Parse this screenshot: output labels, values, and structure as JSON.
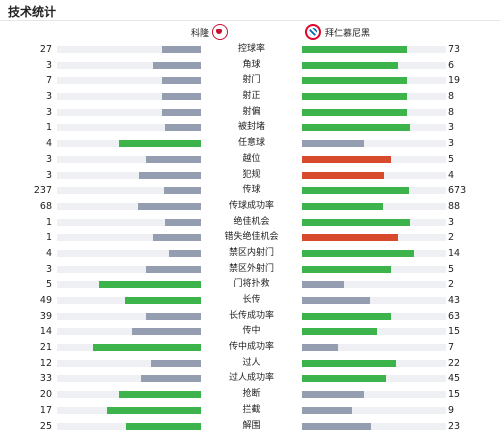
{
  "header": {
    "title": "技术统计"
  },
  "teams": {
    "home": "科隆",
    "away": "拜仁慕尼黑"
  },
  "colors": {
    "win": "#3cb44b",
    "neutral": "#959db0",
    "red": "#d84a2c",
    "track": "#eef0f3"
  },
  "stats": [
    {
      "label": "控球率",
      "home": "27",
      "away": "73",
      "hf": 0.27,
      "af": 0.73,
      "hc": "neutral",
      "ac": "win"
    },
    {
      "label": "角球",
      "home": "3",
      "away": "6",
      "hf": 0.33,
      "af": 0.67,
      "hc": "neutral",
      "ac": "win"
    },
    {
      "label": "射门",
      "home": "7",
      "away": "19",
      "hf": 0.27,
      "af": 0.73,
      "hc": "neutral",
      "ac": "win"
    },
    {
      "label": "射正",
      "home": "3",
      "away": "8",
      "hf": 0.27,
      "af": 0.73,
      "hc": "neutral",
      "ac": "win"
    },
    {
      "label": "射偏",
      "home": "3",
      "away": "8",
      "hf": 0.27,
      "af": 0.73,
      "hc": "neutral",
      "ac": "win"
    },
    {
      "label": "被封堵",
      "home": "1",
      "away": "3",
      "hf": 0.25,
      "af": 0.75,
      "hc": "neutral",
      "ac": "win"
    },
    {
      "label": "任意球",
      "home": "4",
      "away": "3",
      "hf": 0.57,
      "af": 0.43,
      "hc": "win",
      "ac": "neutral"
    },
    {
      "label": "越位",
      "home": "3",
      "away": "5",
      "hf": 0.38,
      "af": 0.62,
      "hc": "neutral",
      "ac": "red"
    },
    {
      "label": "犯规",
      "home": "3",
      "away": "4",
      "hf": 0.43,
      "af": 0.57,
      "hc": "neutral",
      "ac": "red"
    },
    {
      "label": "传球",
      "home": "237",
      "away": "673",
      "hf": 0.26,
      "af": 0.74,
      "hc": "neutral",
      "ac": "win"
    },
    {
      "label": "传球成功率",
      "home": "68",
      "away": "88",
      "hf": 0.44,
      "af": 0.56,
      "hc": "neutral",
      "ac": "win"
    },
    {
      "label": "绝佳机会",
      "home": "1",
      "away": "3",
      "hf": 0.25,
      "af": 0.75,
      "hc": "neutral",
      "ac": "win"
    },
    {
      "label": "错失绝佳机会",
      "home": "1",
      "away": "2",
      "hf": 0.33,
      "af": 0.67,
      "hc": "neutral",
      "ac": "red"
    },
    {
      "label": "禁区内射门",
      "home": "4",
      "away": "14",
      "hf": 0.22,
      "af": 0.78,
      "hc": "neutral",
      "ac": "win"
    },
    {
      "label": "禁区外射门",
      "home": "3",
      "away": "5",
      "hf": 0.38,
      "af": 0.62,
      "hc": "neutral",
      "ac": "win"
    },
    {
      "label": "门将扑救",
      "home": "5",
      "away": "2",
      "hf": 0.71,
      "af": 0.29,
      "hc": "win",
      "ac": "neutral"
    },
    {
      "label": "长传",
      "home": "49",
      "away": "43",
      "hf": 0.53,
      "af": 0.47,
      "hc": "win",
      "ac": "neutral"
    },
    {
      "label": "长传成功率",
      "home": "39",
      "away": "63",
      "hf": 0.38,
      "af": 0.62,
      "hc": "neutral",
      "ac": "win"
    },
    {
      "label": "传中",
      "home": "14",
      "away": "15",
      "hf": 0.48,
      "af": 0.52,
      "hc": "neutral",
      "ac": "win"
    },
    {
      "label": "传中成功率",
      "home": "21",
      "away": "7",
      "hf": 0.75,
      "af": 0.25,
      "hc": "win",
      "ac": "neutral"
    },
    {
      "label": "过人",
      "home": "12",
      "away": "22",
      "hf": 0.35,
      "af": 0.65,
      "hc": "neutral",
      "ac": "win"
    },
    {
      "label": "过人成功率",
      "home": "33",
      "away": "45",
      "hf": 0.42,
      "af": 0.58,
      "hc": "neutral",
      "ac": "win"
    },
    {
      "label": "抢断",
      "home": "20",
      "away": "15",
      "hf": 0.57,
      "af": 0.43,
      "hc": "win",
      "ac": "neutral"
    },
    {
      "label": "拦截",
      "home": "17",
      "away": "9",
      "hf": 0.65,
      "af": 0.35,
      "hc": "win",
      "ac": "neutral"
    },
    {
      "label": "解围",
      "home": "25",
      "away": "23",
      "hf": 0.52,
      "af": 0.48,
      "hc": "win",
      "ac": "neutral"
    }
  ]
}
